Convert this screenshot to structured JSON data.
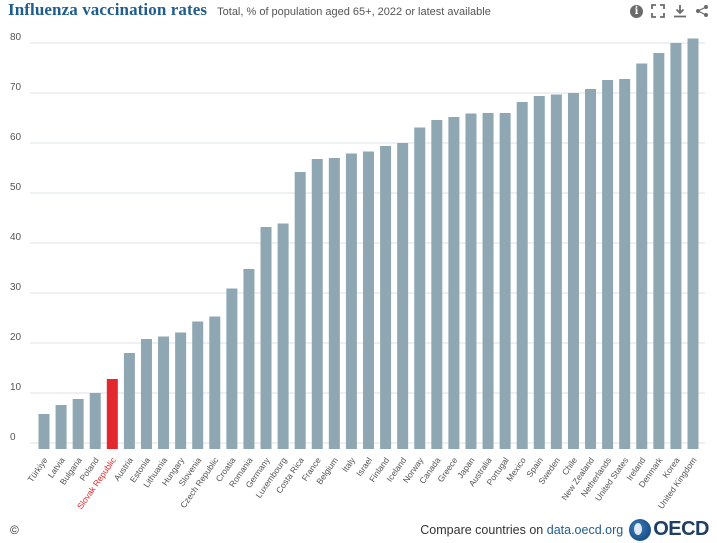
{
  "header": {
    "title": "Influenza vaccination rates",
    "subtitle": "Total, % of population aged 65+, 2022 or latest available"
  },
  "toolbar": {
    "icons": [
      "info-icon",
      "fullscreen-icon",
      "download-icon",
      "share-icon"
    ]
  },
  "footer": {
    "copyright": "©",
    "compare_prefix": "Compare countries on",
    "compare_link": "data.oecd.org",
    "logo_text": "OECD"
  },
  "colors": {
    "bar": "#8fa7b3",
    "highlight": "#e3292f",
    "grid": "#dde3e7",
    "title": "#1f5c8f",
    "highlight_label": "#e3292f"
  },
  "chart_data": {
    "type": "bar",
    "title": "Influenza vaccination rates",
    "subtitle": "Total, % of population aged 65+, 2022 or latest available",
    "xlabel": "",
    "ylabel": "",
    "ylim": [
      0,
      80
    ],
    "yticks": [
      0,
      10,
      20,
      30,
      40,
      50,
      60,
      70,
      80
    ],
    "grid": true,
    "highlight": "Slovak Republic",
    "categories": [
      "Türkiye",
      "Latvia",
      "Bulgaria",
      "Poland",
      "Slovak Republic",
      "Austria",
      "Estonia",
      "Lithuania",
      "Hungary",
      "Slovenia",
      "Czech Republic",
      "Croatia",
      "Romania",
      "Germany",
      "Luxembourg",
      "Costa Rica",
      "France",
      "Belgium",
      "Italy",
      "Israel",
      "Finland",
      "Iceland",
      "Norway",
      "Canada",
      "Greece",
      "Japan",
      "Australia",
      "Portugal",
      "Mexico",
      "Spain",
      "Sweden",
      "Chile",
      "New Zealand",
      "Netherlands",
      "United States",
      "Ireland",
      "Denmark",
      "Korea",
      "United Kingdom"
    ],
    "values": [
      5.8,
      7.6,
      8.8,
      10.0,
      12.8,
      18.0,
      20.8,
      21.3,
      22.1,
      24.3,
      25.3,
      30.9,
      34.8,
      43.2,
      43.9,
      54.2,
      56.8,
      57.0,
      57.9,
      58.3,
      59.4,
      60.0,
      63.1,
      64.6,
      65.2,
      65.9,
      66.0,
      66.0,
      68.2,
      69.4,
      69.7,
      70.0,
      70.8,
      72.6,
      72.8,
      75.9,
      78.0,
      80.0,
      80.9
    ]
  }
}
